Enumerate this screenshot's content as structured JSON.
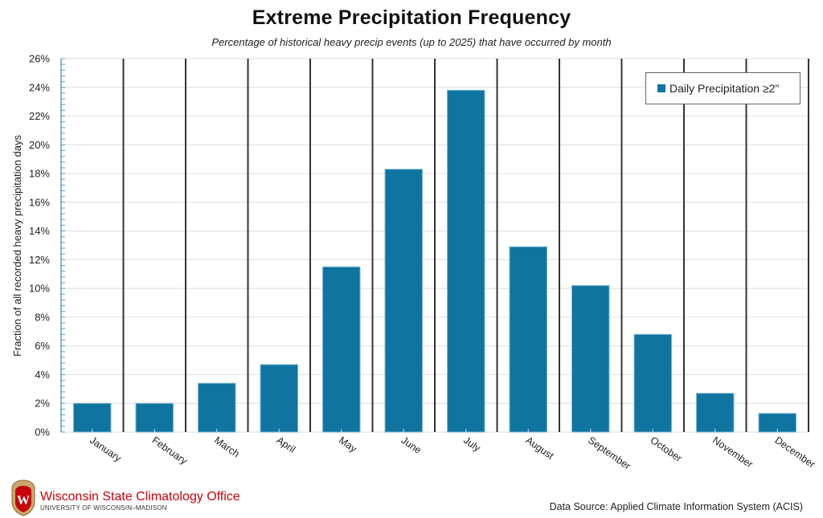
{
  "header": {
    "title": "Extreme Precipitation Frequency",
    "subtitle": "Percentage of historical heavy precip events (up to 2025) that have occurred by month"
  },
  "chart_data": {
    "type": "bar",
    "title": "Extreme Precipitation Frequency",
    "subtitle": "Percentage of historical heavy precip events (up to 2025) that have occurred by month",
    "xlabel": "",
    "ylabel": "Fraction of all recorded heavy precipitation days",
    "categories": [
      "January",
      "February",
      "March",
      "April",
      "May",
      "June",
      "July",
      "August",
      "September",
      "October",
      "November",
      "December"
    ],
    "series": [
      {
        "name": "Daily Precipitation ≥2\"",
        "color": "#0f75a0",
        "values": [
          2.0,
          2.0,
          3.4,
          4.7,
          11.5,
          18.3,
          23.8,
          12.9,
          10.2,
          6.8,
          2.7,
          1.3
        ]
      }
    ],
    "ylim": [
      0,
      26
    ],
    "yticks": [
      0,
      2,
      4,
      6,
      8,
      10,
      12,
      14,
      16,
      18,
      20,
      22,
      24,
      26
    ],
    "ytick_labels": [
      "0%",
      "2%",
      "4%",
      "6%",
      "8%",
      "10%",
      "12%",
      "14%",
      "16%",
      "18%",
      "20%",
      "22%",
      "24%",
      "26%"
    ],
    "y_minor_tick_step": 0.4,
    "grid": true,
    "legend": {
      "position": "top-right",
      "entries": [
        "Daily Precipitation ≥2\""
      ]
    }
  },
  "legend": {
    "label": "Daily Precipitation ≥2\"",
    "color": "#0f75a0"
  },
  "footer": {
    "org_name": "Wisconsin State Climatology Office",
    "org_sub": "UNIVERSITY OF WISCONSIN–MADISON",
    "logo_letter": "W",
    "source": "Data Source: Applied Climate Information System (ACIS)"
  },
  "colors": {
    "bar": "#0f75a0",
    "bar_edge": "#7fb8d3",
    "axis": "#5b9fc4",
    "separator": "#333333",
    "grid": "#e3e3e3",
    "brand_red": "#c5050c"
  }
}
